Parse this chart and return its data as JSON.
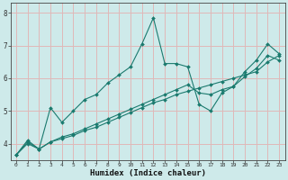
{
  "xlabel": "Humidex (Indice chaleur)",
  "ylabel": "",
  "background_color": "#ceeaea",
  "grid_color": "#e0b8b8",
  "line_color": "#1a7a6e",
  "xlim": [
    -0.5,
    23.5
  ],
  "ylim": [
    3.5,
    8.3
  ],
  "yticks": [
    4,
    5,
    6,
    7,
    8
  ],
  "xticks": [
    0,
    1,
    2,
    3,
    4,
    5,
    6,
    7,
    8,
    9,
    10,
    11,
    12,
    13,
    14,
    15,
    16,
    17,
    18,
    19,
    20,
    21,
    22,
    23
  ],
  "series": [
    {
      "x": [
        0,
        1,
        2,
        3,
        4,
        5,
        6,
        7,
        8,
        9,
        10,
        11,
        12,
        13,
        14,
        15,
        16,
        17,
        18,
        19,
        20,
        21,
        22,
        23
      ],
      "y": [
        3.65,
        4.1,
        3.83,
        5.1,
        4.65,
        5.0,
        5.35,
        5.5,
        5.85,
        6.1,
        6.35,
        7.05,
        7.85,
        6.45,
        6.45,
        6.35,
        5.2,
        5.0,
        5.55,
        5.75,
        6.2,
        6.55,
        7.05,
        6.75
      ]
    },
    {
      "x": [
        0,
        1,
        2,
        3,
        4,
        5,
        6,
        7,
        8,
        9,
        10,
        11,
        12,
        13,
        14,
        15,
        16,
        17,
        18,
        19,
        20,
        21,
        22,
        23
      ],
      "y": [
        3.65,
        4.05,
        3.83,
        4.05,
        4.15,
        4.25,
        4.4,
        4.5,
        4.65,
        4.8,
        4.95,
        5.1,
        5.25,
        5.35,
        5.5,
        5.6,
        5.7,
        5.8,
        5.9,
        6.0,
        6.1,
        6.2,
        6.5,
        6.7
      ]
    },
    {
      "x": [
        0,
        1,
        2,
        3,
        4,
        5,
        6,
        7,
        8,
        9,
        10,
        11,
        12,
        13,
        14,
        15,
        16,
        17,
        18,
        19,
        20,
        21,
        22,
        23
      ],
      "y": [
        3.65,
        4.0,
        3.83,
        4.05,
        4.2,
        4.3,
        4.45,
        4.6,
        4.75,
        4.9,
        5.05,
        5.2,
        5.35,
        5.5,
        5.65,
        5.8,
        5.55,
        5.5,
        5.65,
        5.75,
        6.05,
        6.3,
        6.7,
        6.55
      ]
    }
  ]
}
